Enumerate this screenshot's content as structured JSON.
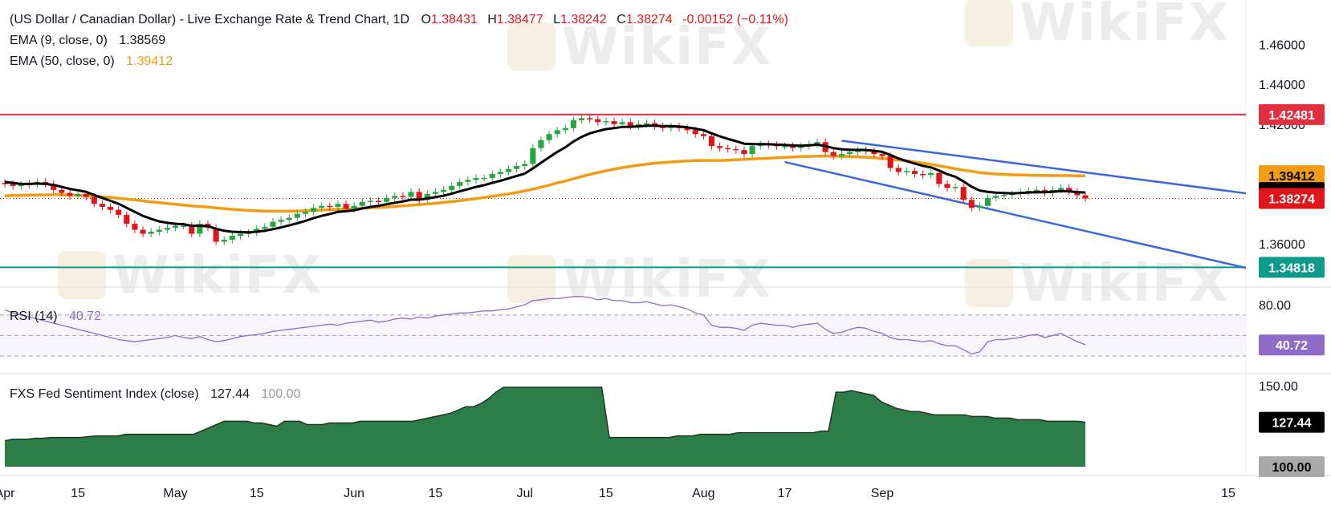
{
  "legend": {
    "title": "(US Dollar / Canadian Dollar) - Live Exchange Rate & Trend Chart, 1D",
    "open_label": "O",
    "open": "1.38431",
    "high_label": "H",
    "high": "1.38477",
    "low_label": "L",
    "low": "1.38242",
    "close_label": "C",
    "close": "1.38274",
    "change": "-0.00152 (−0.11%)",
    "ema9_label": "EMA (9, close, 0)",
    "ema9_value": "1.38569",
    "ema50_label": "EMA (50, close, 0)",
    "ema50_value": "1.39412",
    "rsi_label": "RSI (14)",
    "rsi_value": "40.72",
    "fxs_label": "FXS Fed Sentiment Index (close)",
    "fxs_value": "127.44",
    "fxs_base": "100.00"
  },
  "watermark": "WikiFX",
  "colors": {
    "up": "#26a641",
    "down": "#e0151b",
    "ema9": "#000000",
    "ema50": "#f39c12",
    "resistance": "#e03040",
    "support": "#0e9a8a",
    "channel": "#3a66e0",
    "rsi": "#8f6bc8",
    "fxs_fill": "#2c7d48",
    "fxs_line": "#223322"
  },
  "price_labels": {
    "resistance": "1.42481",
    "ema50": "1.39412",
    "ema9": "1.38569",
    "last": "1.38274",
    "support": "1.34818",
    "rsi": "40.72",
    "fxs": "127.44",
    "fxs_base": "100.00"
  },
  "chart_data": [
    {
      "type": "candlestick",
      "title": "(US Dollar / Canadian Dollar) - Live Exchange Rate & Trend Chart, 1D",
      "x_ticks": [
        "Apr",
        "15",
        "May",
        "15",
        "Jun",
        "15",
        "Jul",
        "15",
        "Aug",
        "17",
        "Sep",
        "15"
      ],
      "y_ticks": [
        "1.46000",
        "1.44000",
        "1.42000",
        "1.36000"
      ],
      "ylim": [
        1.3455,
        1.467
      ],
      "horizontal_levels": {
        "resistance": 1.42481,
        "support": 1.34818
      },
      "closes": [
        1.39,
        1.389,
        1.3895,
        1.3905,
        1.391,
        1.39,
        1.387,
        1.3855,
        1.384,
        1.385,
        1.3835,
        1.38,
        1.3785,
        1.377,
        1.3745,
        1.37,
        1.367,
        1.365,
        1.366,
        1.367,
        1.368,
        1.369,
        1.369,
        1.365,
        1.37,
        1.368,
        1.361,
        1.362,
        1.364,
        1.365,
        1.3655,
        1.3675,
        1.3685,
        1.371,
        1.372,
        1.373,
        1.375,
        1.376,
        1.378,
        1.379,
        1.3785,
        1.38,
        1.3775,
        1.379,
        1.381,
        1.3815,
        1.381,
        1.383,
        1.384,
        1.3835,
        1.386,
        1.382,
        1.385,
        1.386,
        1.387,
        1.389,
        1.391,
        1.392,
        1.393,
        1.393,
        1.395,
        1.396,
        1.3975,
        1.399,
        1.4,
        1.408,
        1.412,
        1.415,
        1.417,
        1.418,
        1.422,
        1.423,
        1.4225,
        1.421,
        1.4215,
        1.42,
        1.421,
        1.419,
        1.42,
        1.4205,
        1.419,
        1.418,
        1.419,
        1.418,
        1.417,
        1.415,
        1.414,
        1.409,
        1.408,
        1.4075,
        1.407,
        1.405,
        1.409,
        1.41,
        1.4095,
        1.409,
        1.409,
        1.408,
        1.409,
        1.41,
        1.411,
        1.406,
        1.404,
        1.405,
        1.406,
        1.407,
        1.4065,
        1.405,
        1.404,
        1.398,
        1.396,
        1.3965,
        1.395,
        1.3945,
        1.3955,
        1.39,
        1.388,
        1.3885,
        1.382,
        1.378,
        1.379,
        1.383,
        1.384,
        1.3845,
        1.385,
        1.386,
        1.3865,
        1.387,
        1.3855,
        1.387,
        1.388,
        1.386,
        1.3843,
        1.3827
      ],
      "opens": [
        1.3905,
        1.39,
        1.389,
        1.3895,
        1.39,
        1.391,
        1.39,
        1.387,
        1.3855,
        1.384,
        1.385,
        1.3835,
        1.38,
        1.3785,
        1.377,
        1.3745,
        1.37,
        1.367,
        1.365,
        1.366,
        1.367,
        1.368,
        1.369,
        1.369,
        1.365,
        1.37,
        1.368,
        1.361,
        1.362,
        1.364,
        1.365,
        1.3655,
        1.3675,
        1.3685,
        1.371,
        1.372,
        1.373,
        1.375,
        1.376,
        1.378,
        1.379,
        1.3785,
        1.38,
        1.3775,
        1.379,
        1.381,
        1.3815,
        1.381,
        1.383,
        1.384,
        1.3835,
        1.386,
        1.382,
        1.385,
        1.386,
        1.387,
        1.389,
        1.391,
        1.392,
        1.393,
        1.393,
        1.395,
        1.396,
        1.3975,
        1.399,
        1.4,
        1.408,
        1.412,
        1.415,
        1.417,
        1.418,
        1.422,
        1.423,
        1.4225,
        1.421,
        1.4215,
        1.42,
        1.421,
        1.419,
        1.42,
        1.4205,
        1.419,
        1.418,
        1.419,
        1.418,
        1.417,
        1.415,
        1.414,
        1.409,
        1.408,
        1.4075,
        1.407,
        1.405,
        1.409,
        1.41,
        1.4095,
        1.409,
        1.409,
        1.408,
        1.409,
        1.41,
        1.411,
        1.406,
        1.404,
        1.405,
        1.406,
        1.407,
        1.4065,
        1.405,
        1.404,
        1.398,
        1.396,
        1.3965,
        1.395,
        1.3945,
        1.3955,
        1.39,
        1.388,
        1.3885,
        1.382,
        1.378,
        1.379,
        1.383,
        1.384,
        1.3845,
        1.385,
        1.386,
        1.3865,
        1.387,
        1.3855,
        1.387,
        1.388,
        1.386,
        1.3843
      ],
      "ema9": [
        1.391,
        1.3905,
        1.39,
        1.39,
        1.3902,
        1.39,
        1.3895,
        1.3885,
        1.3875,
        1.3868,
        1.386,
        1.3845,
        1.383,
        1.3815,
        1.38,
        1.378,
        1.376,
        1.374,
        1.3725,
        1.3712,
        1.3705,
        1.37,
        1.3698,
        1.369,
        1.369,
        1.3688,
        1.3675,
        1.3665,
        1.366,
        1.3658,
        1.3657,
        1.366,
        1.3665,
        1.3673,
        1.3682,
        1.3692,
        1.3703,
        1.3715,
        1.3728,
        1.374,
        1.3749,
        1.376,
        1.3763,
        1.3768,
        1.3777,
        1.3785,
        1.379,
        1.3798,
        1.3806,
        1.3812,
        1.3821,
        1.3821,
        1.3827,
        1.3834,
        1.3841,
        1.3851,
        1.3863,
        1.3874,
        1.3885,
        1.3894,
        1.3905,
        1.3916,
        1.3928,
        1.394,
        1.3952,
        1.3978,
        1.4006,
        1.4034,
        1.4061,
        1.4084,
        1.4113,
        1.4136,
        1.4154,
        1.4165,
        1.4175,
        1.418,
        1.4186,
        1.4187,
        1.4189,
        1.4192,
        1.4192,
        1.419,
        1.419,
        1.4188,
        1.4184,
        1.4177,
        1.417,
        1.4154,
        1.4139,
        1.4126,
        1.4115,
        1.4102,
        1.41,
        1.41,
        1.4099,
        1.4097,
        1.4096,
        1.4093,
        1.4092,
        1.4094,
        1.4097,
        1.409,
        1.408,
        1.4074,
        1.4071,
        1.4071,
        1.407,
        1.4066,
        1.4061,
        1.4045,
        1.4028,
        1.4015,
        1.4002,
        1.3991,
        1.3983,
        1.3967,
        1.3949,
        1.3936,
        1.3913,
        1.3886,
        1.3867,
        1.386,
        1.3856,
        1.3854,
        1.3853,
        1.3854,
        1.3857,
        1.3859,
        1.3858,
        1.3861,
        1.3864,
        1.3863,
        1.3859,
        1.3857
      ],
      "ema50": [
        1.384,
        1.3842,
        1.3843,
        1.3844,
        1.3845,
        1.3845,
        1.3846,
        1.3846,
        1.3845,
        1.3843,
        1.384,
        1.3838,
        1.3835,
        1.3832,
        1.3828,
        1.3824,
        1.382,
        1.3815,
        1.381,
        1.3806,
        1.3802,
        1.3798,
        1.3794,
        1.379,
        1.3787,
        1.3784,
        1.378,
        1.3776,
        1.3773,
        1.377,
        1.3767,
        1.3765,
        1.3764,
        1.3763,
        1.3763,
        1.3763,
        1.3764,
        1.3765,
        1.3767,
        1.3769,
        1.3771,
        1.3773,
        1.3775,
        1.3776,
        1.3778,
        1.378,
        1.3782,
        1.3784,
        1.3787,
        1.379,
        1.3793,
        1.3796,
        1.3799,
        1.3803,
        1.3807,
        1.3811,
        1.3816,
        1.3821,
        1.3826,
        1.3832,
        1.3838,
        1.3844,
        1.385,
        1.3857,
        1.3865,
        1.3874,
        1.3884,
        1.3894,
        1.3905,
        1.3915,
        1.3926,
        1.3937,
        1.3948,
        1.3957,
        1.3966,
        1.3974,
        1.3982,
        1.3988,
        1.3994,
        1.3999,
        1.4004,
        1.4007,
        1.401,
        1.4013,
        1.4015,
        1.4017,
        1.4018,
        1.4018,
        1.4018,
        1.4019,
        1.4021,
        1.4023,
        1.4025,
        1.4027,
        1.4029,
        1.4031,
        1.4033,
        1.4035,
        1.4037,
        1.4038,
        1.4039,
        1.4039,
        1.4039,
        1.4038,
        1.4037,
        1.4036,
        1.4034,
        1.4031,
        1.4028,
        1.4024,
        1.402,
        1.4015,
        1.401,
        1.4004,
        1.3998,
        1.3991,
        1.3984,
        1.3976,
        1.3969,
        1.3963,
        1.3957,
        1.3953,
        1.395,
        1.3948,
        1.3946,
        1.3945,
        1.3944,
        1.3943,
        1.3943,
        1.3942,
        1.3942,
        1.3942,
        1.3941,
        1.3941
      ]
    },
    {
      "type": "line",
      "title": "RSI (14)",
      "y_ticks": [
        "80.00"
      ],
      "ylim": [
        19,
        91
      ],
      "levels": [
        70,
        50,
        30
      ],
      "values": [
        75,
        72,
        70,
        68,
        66,
        64,
        62,
        60,
        58,
        56,
        54,
        52,
        50,
        48,
        46,
        45,
        44,
        45,
        46,
        47,
        48,
        50,
        48,
        47,
        49,
        46,
        44,
        45,
        47,
        49,
        50,
        51,
        52,
        54,
        55,
        56,
        57,
        58,
        59,
        60,
        61,
        60,
        62,
        63,
        64,
        65,
        63,
        64,
        66,
        67,
        66,
        68,
        67,
        69,
        70,
        71,
        72,
        72,
        73,
        74,
        74,
        75,
        76,
        78,
        80,
        84,
        85,
        86,
        86,
        87,
        88,
        88,
        87,
        85,
        86,
        84,
        84,
        82,
        82,
        83,
        81,
        79,
        80,
        78,
        76,
        72,
        70,
        60,
        58,
        58,
        57,
        55,
        60,
        62,
        61,
        60,
        60,
        58,
        60,
        61,
        62,
        56,
        52,
        53,
        56,
        58,
        57,
        54,
        52,
        48,
        46,
        46,
        45,
        44,
        45,
        42,
        40,
        40,
        36,
        32,
        34,
        44,
        46,
        46,
        47,
        48,
        50,
        51,
        48,
        50,
        52,
        48,
        44,
        41
      ],
      "title_value": "40.72"
    },
    {
      "type": "area",
      "title": "FXS Fed Sentiment Index (close)",
      "y_ticks": [
        "150.00",
        "100.00"
      ],
      "ylim": [
        100,
        150
      ],
      "values": [
        116,
        117,
        117,
        117,
        117.5,
        117.5,
        118,
        118,
        118,
        118,
        118,
        118.5,
        119,
        119,
        119,
        119,
        120,
        120,
        120,
        120,
        120,
        120,
        120,
        120,
        120,
        120,
        122,
        124,
        126,
        128,
        128,
        128,
        128,
        127,
        127,
        126,
        125,
        128,
        128,
        128,
        126,
        126,
        126,
        127,
        127,
        127,
        127,
        128,
        128,
        128,
        128,
        128,
        128,
        128,
        128,
        129,
        130,
        131,
        132,
        133,
        135,
        137,
        137,
        139,
        142,
        146,
        149,
        149,
        149,
        149,
        149,
        149,
        149,
        149,
        149,
        149,
        149,
        149,
        149,
        149,
        118,
        118,
        118,
        118,
        118,
        118,
        118,
        118,
        118,
        119,
        119,
        119,
        120,
        120,
        120,
        120,
        120,
        121,
        121,
        121,
        121,
        121,
        121,
        121,
        121,
        121,
        121,
        121,
        122,
        122,
        146,
        146,
        147,
        146,
        145,
        144,
        140,
        138,
        136,
        135,
        134,
        134,
        133,
        132,
        132,
        132,
        132,
        132,
        131,
        131,
        131,
        130,
        130,
        130,
        129,
        129,
        129,
        129,
        128,
        128,
        128,
        128,
        128,
        127.44
      ],
      "last": 127.44,
      "base": 100.0
    }
  ]
}
